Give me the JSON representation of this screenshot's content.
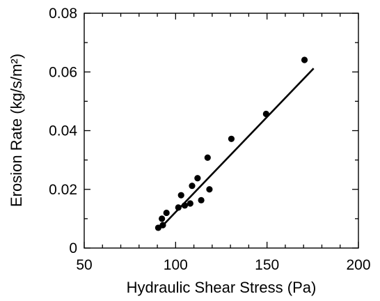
{
  "chart_data": {
    "type": "scatter",
    "title": "",
    "xlabel": "Hydraulic Shear Stress (Pa)",
    "ylabel": "Erosion Rate (kg/s/m²)",
    "xlim": [
      50,
      200
    ],
    "ylim": [
      0,
      0.08
    ],
    "x_ticks": [
      50,
      100,
      150,
      200
    ],
    "x_tick_labels": [
      "50",
      "100",
      "150",
      "200"
    ],
    "y_ticks": [
      0,
      0.02,
      0.04,
      0.06,
      0.08
    ],
    "y_tick_labels": [
      "0",
      "0.02",
      "0.04",
      "0.06",
      "0.08"
    ],
    "x_minor_step": 10,
    "y_minor_step": 0.01,
    "grid": false,
    "series": [
      {
        "kind": "points",
        "x": [
          90.5,
          92.5,
          93.0,
          95.0,
          101.5,
          103.0,
          105.0,
          108.0,
          109.0,
          112.0,
          114.0,
          117.5,
          118.5,
          130.5,
          149.5,
          170.5
        ],
        "y": [
          0.0069,
          0.01,
          0.0078,
          0.012,
          0.0138,
          0.018,
          0.0145,
          0.0152,
          0.0212,
          0.0238,
          0.0163,
          0.0308,
          0.02,
          0.0372,
          0.0457,
          0.0641
        ]
      },
      {
        "kind": "fit-line",
        "x": [
          93.0,
          175.5
        ],
        "y": [
          0.0077,
          0.0612
        ]
      }
    ]
  }
}
